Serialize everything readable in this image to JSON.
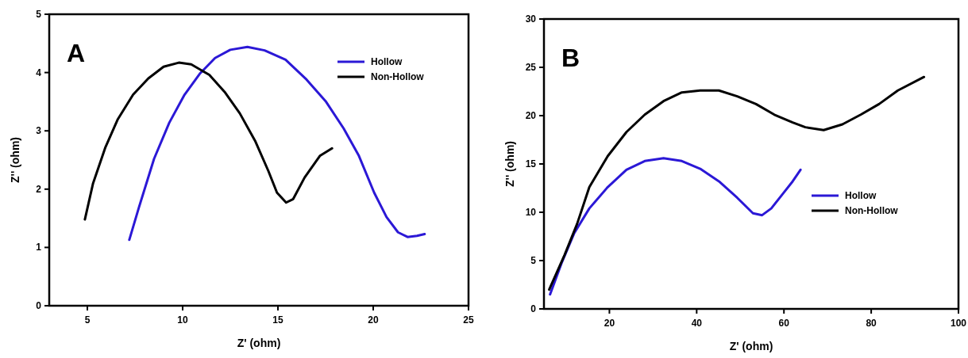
{
  "chart_data": [
    {
      "type": "line",
      "title": "A",
      "xlabel": "Z' (ohm)",
      "ylabel": "Z'' (ohm)",
      "xlim": [
        3,
        25
      ],
      "xticks": [
        5,
        10,
        15,
        20,
        25
      ],
      "ylim": [
        0,
        5
      ],
      "yticks": [
        0,
        1,
        2,
        3,
        4,
        5
      ],
      "grid": false,
      "legend": "top right",
      "marker": "none",
      "line_style": "solid",
      "series": [
        {
          "name": "Hollow",
          "color": "#2b18d6",
          "x": [
            7.2,
            7.7,
            8.5,
            9.3,
            10.1,
            10.9,
            11.7,
            12.5,
            13.4,
            14.3,
            15.4,
            16.5,
            17.5,
            18.45,
            19.25,
            20.05,
            20.7,
            21.3,
            21.8,
            22.3,
            22.7
          ],
          "values": [
            1.13,
            1.68,
            2.52,
            3.14,
            3.62,
            3.98,
            4.25,
            4.39,
            4.44,
            4.38,
            4.22,
            3.88,
            3.51,
            3.04,
            2.57,
            1.94,
            1.52,
            1.26,
            1.18,
            1.2,
            1.23
          ]
        },
        {
          "name": "Non-Hollow",
          "color": "#000000",
          "x": [
            4.87,
            5.3,
            5.95,
            6.6,
            7.4,
            8.2,
            9.0,
            9.8,
            10.45,
            11.4,
            12.2,
            13.0,
            13.8,
            14.5,
            14.95,
            15.43,
            15.8,
            16.4,
            17.2,
            17.84
          ],
          "values": [
            1.48,
            2.1,
            2.72,
            3.2,
            3.62,
            3.9,
            4.1,
            4.17,
            4.14,
            3.96,
            3.67,
            3.3,
            2.83,
            2.31,
            1.94,
            1.77,
            1.83,
            2.2,
            2.57,
            2.7
          ]
        }
      ]
    },
    {
      "type": "line",
      "title": "B",
      "xlabel": "Z' (ohm)",
      "ylabel": "Z'' (ohm)",
      "xlim": [
        5,
        100
      ],
      "xticks": [
        20,
        40,
        60,
        80,
        100
      ],
      "ylim": [
        0,
        30
      ],
      "yticks": [
        0,
        5,
        10,
        15,
        20,
        25,
        30
      ],
      "grid": false,
      "legend": "right",
      "marker": "none",
      "line_style": "solid",
      "series": [
        {
          "name": "Hollow",
          "color": "#2b18d6",
          "x": [
            6.4,
            9.0,
            11.9,
            15.4,
            19.6,
            23.9,
            28.1,
            32.4,
            36.6,
            40.8,
            45.1,
            49.3,
            52.9,
            55.0,
            57.1,
            59.9,
            62.0,
            63.8
          ],
          "values": [
            1.5,
            4.7,
            7.8,
            10.4,
            12.6,
            14.4,
            15.3,
            15.6,
            15.3,
            14.5,
            13.2,
            11.5,
            9.9,
            9.7,
            10.4,
            12.0,
            13.2,
            14.4
          ]
        },
        {
          "name": "Non-Hollow",
          "color": "#000000",
          "x": [
            6.2,
            9.75,
            12.6,
            15.4,
            19.6,
            23.9,
            28.1,
            32.4,
            36.6,
            40.8,
            45.1,
            49.3,
            53.6,
            57.8,
            62.0,
            64.9,
            69.1,
            73.4,
            77.6,
            81.8,
            86.1,
            92.1
          ],
          "values": [
            2.0,
            5.6,
            8.8,
            12.6,
            15.8,
            18.3,
            20.1,
            21.5,
            22.4,
            22.6,
            22.6,
            22.0,
            21.2,
            20.1,
            19.3,
            18.8,
            18.5,
            19.1,
            20.1,
            21.2,
            22.6,
            24.0
          ]
        }
      ]
    }
  ]
}
